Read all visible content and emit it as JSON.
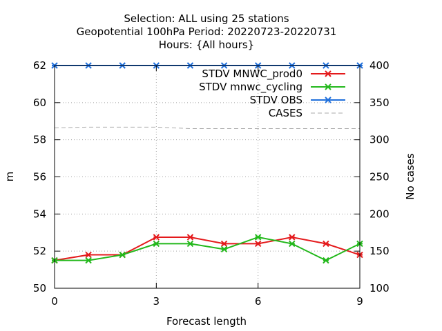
{
  "title": {
    "line1": "Selection: ALL using    25 stations",
    "line2": "Geopotential 100hPa   Period: 20220723-20220731",
    "line3": "Hours: {All hours}"
  },
  "chart_data": {
    "type": "line",
    "xlabel": "Forecast length",
    "ylabel": "m",
    "y2label": "No cases",
    "xlim": [
      0,
      9
    ],
    "ylim": [
      50,
      62
    ],
    "y2lim": [
      100,
      400
    ],
    "x_ticks": [
      0,
      3,
      6,
      9
    ],
    "y_ticks": [
      50,
      52,
      54,
      56,
      58,
      60,
      62
    ],
    "y2_ticks": [
      100,
      150,
      200,
      250,
      300,
      350,
      400
    ],
    "grid": true,
    "legend_position": "top-right",
    "x": [
      0,
      1,
      2,
      3,
      4,
      5,
      6,
      7,
      8,
      9
    ],
    "series": [
      {
        "name": "STDV MNWC_prod0",
        "axis": "y",
        "color": "#e41a1c",
        "marker": "x",
        "values": [
          51.5,
          51.8,
          51.8,
          52.75,
          52.75,
          52.4,
          52.4,
          52.75,
          52.4,
          51.8
        ]
      },
      {
        "name": "STDV mnwc_cycling",
        "axis": "y",
        "color": "#22b81b",
        "marker": "x",
        "values": [
          51.5,
          51.5,
          51.8,
          52.4,
          52.4,
          52.1,
          52.75,
          52.4,
          51.5,
          52.4
        ]
      },
      {
        "name": "STDV OBS",
        "axis": "y",
        "color": "#1f6fdb",
        "marker": "x",
        "values": [
          62,
          62,
          62,
          62,
          62,
          62,
          62,
          62,
          62,
          62
        ]
      },
      {
        "name": "CASES",
        "axis": "y2",
        "color": "#aaaaaa",
        "marker": "none",
        "dashed": true,
        "values": [
          316,
          317,
          317,
          317,
          315,
          315,
          315,
          315,
          315,
          315
        ]
      }
    ]
  }
}
